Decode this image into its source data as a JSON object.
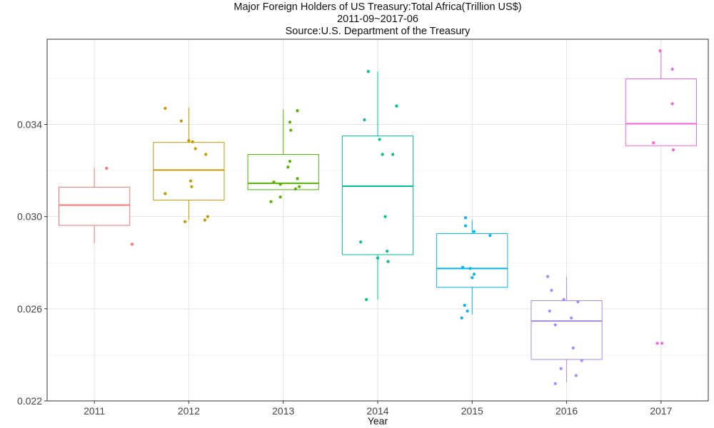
{
  "chart_data": {
    "type": "boxplot",
    "title": "Major Foreign Holders of US Treasury:Total Africa(Trillion US$)",
    "subtitle": "2011-09~2017-06",
    "source": "Source:U.S. Department of the Treasury",
    "xlabel": "Year",
    "ylabel": "",
    "ylim": [
      0.022,
      0.0377
    ],
    "y_ticks": [
      "0.022",
      "0.026",
      "0.030",
      "0.034"
    ],
    "grid": true,
    "legend": "none",
    "categories": [
      "2011",
      "2012",
      "2013",
      "2014",
      "2015",
      "2016",
      "2017"
    ],
    "colors": [
      "#F8766D",
      "#C49A00",
      "#53B400",
      "#00C094",
      "#00B6EB",
      "#A58AFF",
      "#FB61D7"
    ],
    "boxes": [
      {
        "q1": 0.02962,
        "median": 0.0305,
        "q3": 0.03128,
        "whisker_low": 0.02885,
        "whisker_high": 0.03212
      },
      {
        "q1": 0.03072,
        "median": 0.03202,
        "q3": 0.03322,
        "whisker_low": 0.02985,
        "whisker_high": 0.03473
      },
      {
        "q1": 0.03117,
        "median": 0.03145,
        "q3": 0.0327,
        "whisker_low": 0.03117,
        "whisker_high": 0.03465
      },
      {
        "q1": 0.02835,
        "median": 0.03132,
        "q3": 0.0335,
        "whisker_low": 0.0264,
        "whisker_high": 0.0363
      },
      {
        "q1": 0.02693,
        "median": 0.02775,
        "q3": 0.02926,
        "whisker_low": 0.02575,
        "whisker_high": 0.02985
      },
      {
        "q1": 0.0238,
        "median": 0.02547,
        "q3": 0.02635,
        "whisker_low": 0.0228,
        "whisker_high": 0.0274
      },
      {
        "q1": 0.03308,
        "median": 0.03403,
        "q3": 0.03598,
        "whisker_low": 0.03308,
        "whisker_high": 0.0372
      }
    ],
    "points": [
      [
        0.0321,
        0.0288
      ],
      [
        0.0347,
        0.03415,
        0.0333,
        0.03325,
        0.03295,
        0.0327,
        0.03155,
        0.0313,
        0.031,
        0.03,
        0.02985,
        0.02978
      ],
      [
        0.0346,
        0.0341,
        0.03375,
        0.0324,
        0.03215,
        0.03165,
        0.0315,
        0.0314,
        0.0313,
        0.0312,
        0.03085,
        0.03065
      ],
      [
        0.0363,
        0.0348,
        0.0342,
        0.03335,
        0.0327,
        0.0327,
        0.03,
        0.0289,
        0.0285,
        0.0282,
        0.02805,
        0.0264
      ],
      [
        0.02995,
        0.0296,
        0.02935,
        0.02918,
        0.0278,
        0.02775,
        0.0275,
        0.02735,
        0.02615,
        0.0259,
        0.0256
      ],
      [
        0.0274,
        0.0268,
        0.0264,
        0.0263,
        0.0259,
        0.0256,
        0.0253,
        0.0243,
        0.02375,
        0.0234,
        0.0231,
        0.02275
      ],
      [
        0.0372,
        0.0364,
        0.0349,
        0.0332,
        0.0329,
        0.0245,
        0.0245
      ]
    ],
    "jitter": [
      [
        0.13,
        0.4
      ],
      [
        -0.25,
        -0.08,
        0.0,
        0.04,
        0.07,
        0.18,
        0.02,
        0.03,
        -0.25,
        0.2,
        0.17,
        -0.04
      ],
      [
        0.15,
        0.07,
        0.08,
        0.07,
        0.05,
        0.15,
        -0.1,
        -0.03,
        0.17,
        0.13,
        -0.03,
        -0.13
      ],
      [
        -0.1,
        0.2,
        -0.14,
        0.02,
        0.05,
        0.16,
        0.08,
        -0.18,
        0.1,
        0.0,
        0.11,
        -0.12
      ],
      [
        -0.07,
        -0.07,
        0.02,
        0.19,
        -0.1,
        -0.02,
        0.02,
        0.0,
        -0.08,
        -0.05,
        -0.11
      ],
      [
        -0.2,
        -0.16,
        -0.03,
        0.12,
        -0.18,
        0.05,
        -0.12,
        0.07,
        0.16,
        -0.06,
        0.1,
        -0.12
      ],
      [
        -0.01,
        0.12,
        0.12,
        -0.08,
        0.13,
        -0.04,
        0.01
      ]
    ]
  }
}
